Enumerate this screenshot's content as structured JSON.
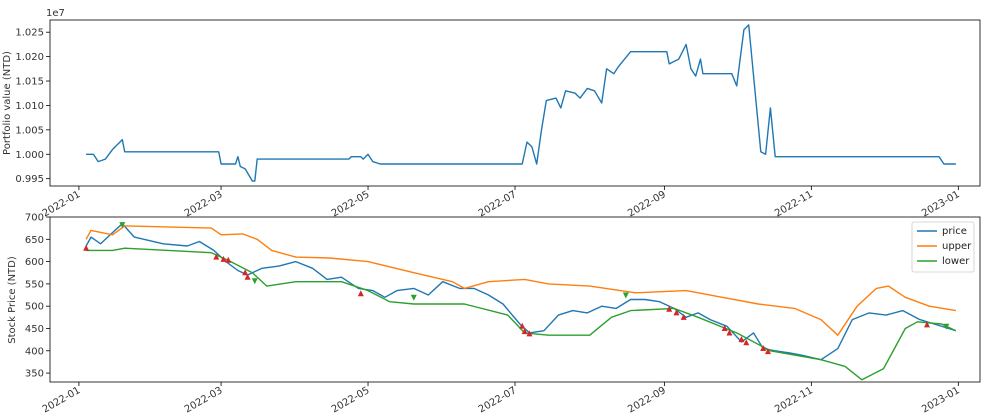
{
  "chart_data": [
    {
      "type": "line",
      "title": "",
      "ylabel": "Portfolio value (NTD)",
      "y_offset_label": "1e7",
      "x_ticks": [
        "2022-01",
        "2022-03",
        "2022-05",
        "2022-07",
        "2022-09",
        "2022-11",
        "2023-01"
      ],
      "y_ticks": [
        "0.995",
        "1.000",
        "1.005",
        "1.010",
        "1.015",
        "1.020",
        "1.025"
      ],
      "ylim": [
        0.9935,
        1.0275
      ],
      "xlim": [
        "2021-12-20",
        "2023-01-10"
      ],
      "series": [
        {
          "color": "#1f77b4",
          "points": [
            [
              "2022-01-04",
              1.0
            ],
            [
              "2022-01-07",
              1.0
            ],
            [
              "2022-01-09",
              0.9985
            ],
            [
              "2022-01-12",
              0.999
            ],
            [
              "2022-01-15",
              1.001
            ],
            [
              "2022-01-18",
              1.0025
            ],
            [
              "2022-01-19",
              1.003
            ],
            [
              "2022-01-20",
              1.0005
            ],
            [
              "2022-02-28",
              1.0005
            ],
            [
              "2022-03-01",
              0.998
            ],
            [
              "2022-03-07",
              0.998
            ],
            [
              "2022-03-08",
              0.9995
            ],
            [
              "2022-03-09",
              0.9975
            ],
            [
              "2022-03-11",
              0.997
            ],
            [
              "2022-03-14",
              0.9945
            ],
            [
              "2022-03-15",
              0.9945
            ],
            [
              "2022-03-16",
              0.999
            ],
            [
              "2022-04-23",
              0.999
            ],
            [
              "2022-04-24",
              0.9995
            ],
            [
              "2022-04-28",
              0.9995
            ],
            [
              "2022-04-29",
              0.999
            ],
            [
              "2022-05-01",
              1.0
            ],
            [
              "2022-05-03",
              0.9985
            ],
            [
              "2022-05-06",
              0.998
            ],
            [
              "2022-07-04",
              0.998
            ],
            [
              "2022-07-06",
              1.0025
            ],
            [
              "2022-07-08",
              1.0015
            ],
            [
              "2022-07-10",
              0.998
            ],
            [
              "2022-07-12",
              1.005
            ],
            [
              "2022-07-14",
              1.011
            ],
            [
              "2022-07-18",
              1.0115
            ],
            [
              "2022-07-20",
              1.0095
            ],
            [
              "2022-07-22",
              1.013
            ],
            [
              "2022-07-26",
              1.0125
            ],
            [
              "2022-07-28",
              1.0115
            ],
            [
              "2022-07-31",
              1.0135
            ],
            [
              "2022-08-03",
              1.013
            ],
            [
              "2022-08-06",
              1.0105
            ],
            [
              "2022-08-08",
              1.0175
            ],
            [
              "2022-08-11",
              1.0165
            ],
            [
              "2022-08-13",
              1.018
            ],
            [
              "2022-08-18",
              1.021
            ],
            [
              "2022-09-02",
              1.021
            ],
            [
              "2022-09-03",
              1.0185
            ],
            [
              "2022-09-07",
              1.0195
            ],
            [
              "2022-09-10",
              1.0225
            ],
            [
              "2022-09-12",
              1.0175
            ],
            [
              "2022-09-14",
              1.016
            ],
            [
              "2022-09-16",
              1.0195
            ],
            [
              "2022-09-17",
              1.0165
            ],
            [
              "2022-09-29",
              1.0165
            ],
            [
              "2022-10-01",
              1.014
            ],
            [
              "2022-10-04",
              1.0255
            ],
            [
              "2022-10-06",
              1.0265
            ],
            [
              "2022-10-11",
              1.0005
            ],
            [
              "2022-10-13",
              1.0
            ],
            [
              "2022-10-15",
              1.0095
            ],
            [
              "2022-10-17",
              0.9995
            ],
            [
              "2022-12-24",
              0.9995
            ],
            [
              "2022-12-26",
              0.998
            ],
            [
              "2022-12-31",
              0.998
            ]
          ]
        }
      ]
    },
    {
      "type": "line",
      "title": "",
      "ylabel": "Stock Price (NTD)",
      "x_ticks": [
        "2022-01",
        "2022-03",
        "2022-05",
        "2022-07",
        "2022-09",
        "2022-11",
        "2023-01"
      ],
      "y_ticks": [
        "350",
        "400",
        "450",
        "500",
        "550",
        "600",
        "650",
        "700"
      ],
      "ylim": [
        330,
        700
      ],
      "xlim": [
        "2021-12-20",
        "2023-01-10"
      ],
      "legend": {
        "placement": "top-right",
        "entries": [
          "price",
          "upper",
          "lower"
        ]
      },
      "series": [
        {
          "name": "price",
          "color": "#1f77b4",
          "points": [
            [
              "2022-01-04",
              635
            ],
            [
              "2022-01-06",
              655
            ],
            [
              "2022-01-10",
              640
            ],
            [
              "2022-01-14",
              660
            ],
            [
              "2022-01-19",
              685
            ],
            [
              "2022-01-24",
              655
            ],
            [
              "2022-01-28",
              650
            ],
            [
              "2022-02-05",
              640
            ],
            [
              "2022-02-15",
              635
            ],
            [
              "2022-02-20",
              645
            ],
            [
              "2022-02-26",
              625
            ],
            [
              "2022-03-03",
              600
            ],
            [
              "2022-03-08",
              580
            ],
            [
              "2022-03-12",
              570
            ],
            [
              "2022-03-18",
              585
            ],
            [
              "2022-03-25",
              590
            ],
            [
              "2022-04-01",
              600
            ],
            [
              "2022-04-08",
              585
            ],
            [
              "2022-04-14",
              560
            ],
            [
              "2022-04-20",
              565
            ],
            [
              "2022-04-27",
              540
            ],
            [
              "2022-05-03",
              535
            ],
            [
              "2022-05-08",
              520
            ],
            [
              "2022-05-13",
              535
            ],
            [
              "2022-05-20",
              540
            ],
            [
              "2022-05-26",
              525
            ],
            [
              "2022-06-01",
              555
            ],
            [
              "2022-06-08",
              540
            ],
            [
              "2022-06-14",
              540
            ],
            [
              "2022-06-20",
              525
            ],
            [
              "2022-06-26",
              505
            ],
            [
              "2022-07-03",
              460
            ],
            [
              "2022-07-07",
              440
            ],
            [
              "2022-07-13",
              445
            ],
            [
              "2022-07-19",
              480
            ],
            [
              "2022-07-25",
              490
            ],
            [
              "2022-07-31",
              485
            ],
            [
              "2022-08-06",
              500
            ],
            [
              "2022-08-12",
              495
            ],
            [
              "2022-08-18",
              515
            ],
            [
              "2022-08-24",
              515
            ],
            [
              "2022-08-30",
              510
            ],
            [
              "2022-09-05",
              495
            ],
            [
              "2022-09-10",
              475
            ],
            [
              "2022-09-15",
              485
            ],
            [
              "2022-09-20",
              470
            ],
            [
              "2022-09-27",
              455
            ],
            [
              "2022-10-03",
              420
            ],
            [
              "2022-10-08",
              440
            ],
            [
              "2022-10-12",
              405
            ],
            [
              "2022-10-17",
              400
            ],
            [
              "2022-10-23",
              395
            ],
            [
              "2022-10-28",
              390
            ],
            [
              "2022-11-05",
              380
            ],
            [
              "2022-11-12",
              405
            ],
            [
              "2022-11-18",
              470
            ],
            [
              "2022-11-25",
              485
            ],
            [
              "2022-12-02",
              480
            ],
            [
              "2022-12-09",
              490
            ],
            [
              "2022-12-16",
              470
            ],
            [
              "2022-12-22",
              460
            ],
            [
              "2022-12-31",
              445
            ]
          ]
        },
        {
          "name": "upper",
          "color": "#ff7f0e",
          "points": [
            [
              "2022-01-04",
              650
            ],
            [
              "2022-01-06",
              670
            ],
            [
              "2022-01-15",
              660
            ],
            [
              "2022-01-20",
              680
            ],
            [
              "2022-02-25",
              675
            ],
            [
              "2022-03-01",
              660
            ],
            [
              "2022-03-10",
              662
            ],
            [
              "2022-03-16",
              650
            ],
            [
              "2022-03-22",
              625
            ],
            [
              "2022-04-01",
              610
            ],
            [
              "2022-04-15",
              608
            ],
            [
              "2022-05-01",
              600
            ],
            [
              "2022-05-20",
              575
            ],
            [
              "2022-06-05",
              555
            ],
            [
              "2022-06-10",
              540
            ],
            [
              "2022-06-20",
              555
            ],
            [
              "2022-07-05",
              560
            ],
            [
              "2022-07-15",
              550
            ],
            [
              "2022-08-01",
              545
            ],
            [
              "2022-08-20",
              530
            ],
            [
              "2022-09-10",
              535
            ],
            [
              "2022-09-25",
              520
            ],
            [
              "2022-10-10",
              505
            ],
            [
              "2022-10-25",
              495
            ],
            [
              "2022-11-05",
              470
            ],
            [
              "2022-11-12",
              435
            ],
            [
              "2022-11-20",
              500
            ],
            [
              "2022-11-28",
              540
            ],
            [
              "2022-12-03",
              545
            ],
            [
              "2022-12-10",
              520
            ],
            [
              "2022-12-20",
              500
            ],
            [
              "2022-12-31",
              490
            ]
          ]
        },
        {
          "name": "lower",
          "color": "#2ca02c",
          "points": [
            [
              "2022-01-04",
              625
            ],
            [
              "2022-01-15",
              625
            ],
            [
              "2022-01-20",
              630
            ],
            [
              "2022-02-25",
              620
            ],
            [
              "2022-03-05",
              600
            ],
            [
              "2022-03-14",
              575
            ],
            [
              "2022-03-20",
              545
            ],
            [
              "2022-04-01",
              555
            ],
            [
              "2022-04-20",
              555
            ],
            [
              "2022-05-01",
              535
            ],
            [
              "2022-05-10",
              510
            ],
            [
              "2022-05-20",
              505
            ],
            [
              "2022-06-10",
              505
            ],
            [
              "2022-06-28",
              480
            ],
            [
              "2022-07-05",
              440
            ],
            [
              "2022-07-15",
              435
            ],
            [
              "2022-08-01",
              435
            ],
            [
              "2022-08-10",
              475
            ],
            [
              "2022-08-18",
              490
            ],
            [
              "2022-09-05",
              495
            ],
            [
              "2022-09-15",
              475
            ],
            [
              "2022-10-01",
              440
            ],
            [
              "2022-10-15",
              400
            ],
            [
              "2022-11-05",
              380
            ],
            [
              "2022-11-15",
              365
            ],
            [
              "2022-11-22",
              335
            ],
            [
              "2022-12-01",
              360
            ],
            [
              "2022-12-10",
              450
            ],
            [
              "2022-12-15",
              465
            ],
            [
              "2022-12-25",
              460
            ],
            [
              "2022-12-31",
              445
            ]
          ]
        }
      ],
      "buy_markers": {
        "color": "#d62728",
        "points": [
          [
            "2022-01-04",
            630
          ],
          [
            "2022-02-27",
            610
          ],
          [
            "2022-03-02",
            605
          ],
          [
            "2022-03-04",
            603
          ],
          [
            "2022-03-11",
            575
          ],
          [
            "2022-03-12",
            565
          ],
          [
            "2022-04-28",
            528
          ],
          [
            "2022-07-04",
            455
          ],
          [
            "2022-07-05",
            443
          ],
          [
            "2022-07-07",
            438
          ],
          [
            "2022-09-03",
            493
          ],
          [
            "2022-09-06",
            485
          ],
          [
            "2022-09-09",
            475
          ],
          [
            "2022-09-26",
            450
          ],
          [
            "2022-09-28",
            440
          ],
          [
            "2022-10-03",
            425
          ],
          [
            "2022-10-05",
            418
          ],
          [
            "2022-10-12",
            405
          ],
          [
            "2022-10-14",
            398
          ],
          [
            "2022-12-19",
            458
          ]
        ]
      },
      "sell_markers": {
        "color": "#2ca02c",
        "points": [
          [
            "2022-01-19",
            683
          ],
          [
            "2022-03-15",
            557
          ],
          [
            "2022-05-20",
            520
          ],
          [
            "2022-08-16",
            525
          ],
          [
            "2022-12-27",
            455
          ]
        ]
      }
    }
  ]
}
